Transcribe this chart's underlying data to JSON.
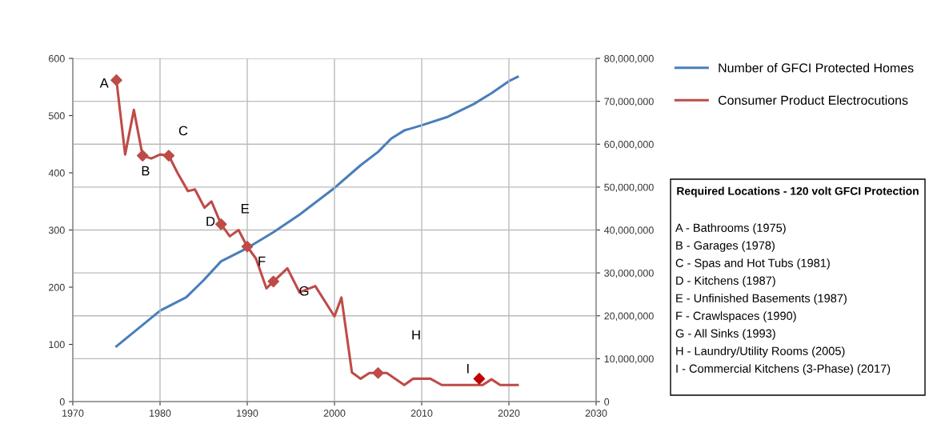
{
  "chart_data": {
    "type": "line",
    "series": [
      {
        "name": "Number of GFCI Protected Homes",
        "color": "#4a7ebb",
        "axis": "y2",
        "marker": "none",
        "x": [
          1975,
          1977,
          1980,
          1983,
          1985,
          1987,
          1990,
          1993,
          1996,
          2000,
          2003,
          2005,
          2006.5,
          2008,
          2010,
          2013,
          2016,
          2018,
          2020,
          2021
        ],
        "values": [
          12900000,
          16200000,
          21200000,
          24300000,
          28300000,
          32700000,
          35800000,
          39500000,
          43600000,
          49800000,
          55100000,
          58200000,
          61300000,
          63200000,
          64400000,
          66400000,
          69400000,
          71900000,
          74700000,
          75700000
        ]
      },
      {
        "name": "Consumer Product Electrocutions",
        "color": "#be4b48",
        "marker": "none",
        "x": [
          1975,
          1976,
          1977,
          1978,
          1979,
          1980,
          1981,
          1982,
          1983.2,
          1984,
          1985.1,
          1985.9,
          1987,
          1988,
          1989,
          1990,
          1991,
          1992.2,
          1993,
          1994.6,
          1996,
          1997.8,
          2000,
          2000.8,
          2002,
          2003,
          2004,
          2005,
          2006,
          2008,
          2009,
          2011,
          2012.3,
          2017,
          2018,
          2019,
          2021
        ],
        "values": [
          562,
          432,
          510,
          430,
          425,
          432,
          430,
          400,
          368,
          371,
          339,
          350,
          310,
          289,
          300,
          271,
          250,
          198,
          210,
          233,
          191,
          202,
          149,
          182,
          51,
          40,
          50,
          50,
          50,
          29,
          40,
          40,
          29,
          29,
          39,
          29,
          29
        ]
      },
      {
        "type": "scatter",
        "color": "#be4b48",
        "marker": "diamond",
        "x": [
          1975,
          1978,
          1981,
          1987,
          1990,
          1993,
          2005
        ],
        "values": [
          562,
          430,
          430,
          310,
          271,
          210,
          50
        ]
      },
      {
        "type": "scatter",
        "color": "#c00000",
        "marker": "diamond",
        "x": [
          2016.6
        ],
        "values": [
          40
        ]
      }
    ],
    "xlim": [
      1970,
      2030
    ],
    "xticks": [
      1970,
      1980,
      1990,
      2000,
      2010,
      2020,
      2030
    ],
    "ylim": [
      0,
      600
    ],
    "yticks": [
      0,
      100,
      200,
      300,
      400,
      500,
      600
    ],
    "y2lim": [
      0,
      80000000
    ],
    "y2ticks": [
      {
        "value": 0,
        "label": "0"
      },
      {
        "value": 10000000,
        "label": "10,000,000"
      },
      {
        "value": 20000000,
        "label": "20,000,000"
      },
      {
        "value": 30000000,
        "label": "30,000,000"
      },
      {
        "value": 40000000,
        "label": "40,000,000"
      },
      {
        "value": 50000000,
        "label": "50,000,000"
      },
      {
        "value": 60000000,
        "label": "60,000,000"
      },
      {
        "value": 70000000,
        "label": "70,000,000"
      },
      {
        "value": 80000000,
        "label": "80,000,000"
      }
    ],
    "grid": true,
    "legend": "right",
    "annotations": [
      "A",
      "B",
      "C",
      "D",
      "E",
      "F",
      "G",
      "H",
      "I",
      "Required Locations - 120 volt GFCI Protection",
      "A - Bathrooms (1975)",
      "B - Garages (1978)",
      "C - Spas and Hot Tubs (1981)",
      "D - Kitchens (1987)",
      "E - Unfinished Basements (1987)",
      "F - Crawlspaces (1990)",
      "G - All Sinks (1993)",
      "H - Laundry/Utility Rooms (2005)",
      "I - Commercial Kitchens (3-Phase) (2017)"
    ]
  }
}
